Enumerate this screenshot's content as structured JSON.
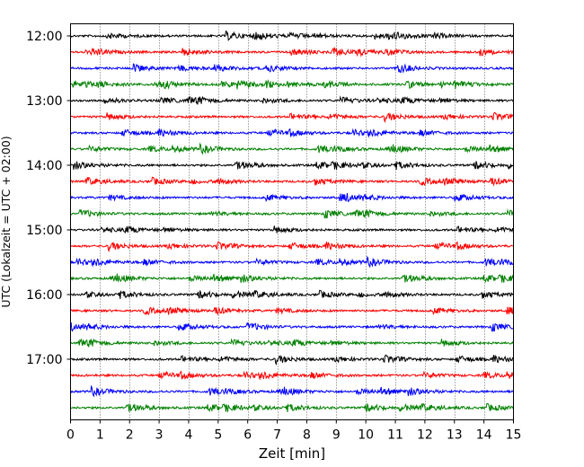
{
  "chart_data": {
    "type": "line",
    "title": "",
    "xlabel": "Zeit  [min]",
    "ylabel": "UTC (Lokalzeit = UTC + 02:00)",
    "xlim": [
      0,
      15
    ],
    "x_ticks": [
      "0",
      "1",
      "2",
      "3",
      "4",
      "5",
      "6",
      "7",
      "8",
      "9",
      "10",
      "11",
      "12",
      "13",
      "14",
      "15"
    ],
    "y_ticks": [
      "12:00",
      "13:00",
      "14:00",
      "15:00",
      "16:00",
      "17:00"
    ],
    "grid": "vertical dotted",
    "legend": "none",
    "trace_interval_minutes": 15,
    "trace_start": "12:00",
    "trace_count": 24,
    "trace_colors": [
      "#000000",
      "#ff0000",
      "#0000ff",
      "#008000"
    ]
  }
}
